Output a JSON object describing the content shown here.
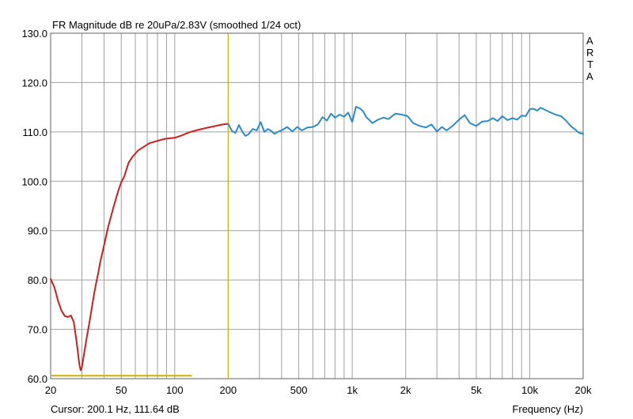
{
  "title": "FR Magnitude dB re 20uPa/2.83V (smoothed 1/24 oct)",
  "side_label": [
    "A",
    "R",
    "T",
    "A"
  ],
  "cursor_text": "Cursor: 200.1 Hz, 111.64 dB",
  "xlabel": "Frequency (Hz)",
  "colors": {
    "background": "#ffffff",
    "grid": "#a0a0a0",
    "frame": "#606060",
    "cursor_line": "#c8b400",
    "marker_line": "#c8b400",
    "series_low": "#cc2020",
    "series_high": "#2e8bc8"
  },
  "chart_data": {
    "type": "line",
    "title": "FR Magnitude dB re 20uPa/2.83V (smoothed 1/24 oct)",
    "xlabel": "Frequency (Hz)",
    "ylabel": "",
    "xscale": "log",
    "xlim": [
      20,
      20000
    ],
    "ylim": [
      60,
      130
    ],
    "grid": true,
    "x_tick_labels": [
      {
        "value": 20,
        "label": "20"
      },
      {
        "value": 50,
        "label": "50"
      },
      {
        "value": 100,
        "label": "100"
      },
      {
        "value": 200,
        "label": "200"
      },
      {
        "value": 500,
        "label": "500"
      },
      {
        "value": 1000,
        "label": "1k"
      },
      {
        "value": 2000,
        "label": "2k"
      },
      {
        "value": 5000,
        "label": "5k"
      },
      {
        "value": 10000,
        "label": "10k"
      },
      {
        "value": 20000,
        "label": "20k"
      }
    ],
    "y_tick_labels": [
      {
        "value": 130,
        "label": "130.0"
      },
      {
        "value": 120,
        "label": "120.0"
      },
      {
        "value": 110,
        "label": "110.0"
      },
      {
        "value": 100,
        "label": "100.0"
      },
      {
        "value": 90,
        "label": "90.0"
      },
      {
        "value": 80,
        "label": "80.0"
      },
      {
        "value": 70,
        "label": "70.0"
      },
      {
        "value": 60,
        "label": "60.0"
      }
    ],
    "cursor": {
      "x": 200.1,
      "y": 111.64
    },
    "marker_segment": {
      "x": [
        20,
        125
      ],
      "y": 60.6
    },
    "series": [
      {
        "color": "#cc2020",
        "points": [
          [
            20,
            80.2
          ],
          [
            21,
            78.5
          ],
          [
            22,
            75.8
          ],
          [
            23,
            73.8
          ],
          [
            24,
            72.7
          ],
          [
            25,
            72.5
          ],
          [
            26,
            72.8
          ],
          [
            27,
            71.5
          ],
          [
            28,
            67.5
          ],
          [
            29,
            63.0
          ],
          [
            29.5,
            61.7
          ],
          [
            30,
            62.3
          ],
          [
            31,
            65.5
          ],
          [
            32,
            68.5
          ],
          [
            33,
            71.2
          ],
          [
            34,
            74.0
          ],
          [
            35,
            76.8
          ],
          [
            36,
            79.2
          ],
          [
            37,
            81.2
          ],
          [
            38,
            83.5
          ],
          [
            40,
            87.0
          ],
          [
            42,
            90.5
          ],
          [
            45,
            94.5
          ],
          [
            48,
            98.0
          ],
          [
            50,
            99.8
          ],
          [
            52,
            101.0
          ],
          [
            55,
            103.8
          ],
          [
            58,
            105.0
          ],
          [
            62,
            106.2
          ],
          [
            67,
            107.0
          ],
          [
            72,
            107.7
          ],
          [
            80,
            108.2
          ],
          [
            88,
            108.6
          ],
          [
            100,
            108.8
          ],
          [
            110,
            109.3
          ],
          [
            120,
            109.9
          ],
          [
            135,
            110.4
          ],
          [
            150,
            110.8
          ],
          [
            170,
            111.2
          ],
          [
            185,
            111.5
          ],
          [
            200.1,
            111.64
          ]
        ]
      },
      {
        "color": "#2e8bc8",
        "points": [
          [
            200.1,
            111.64
          ],
          [
            210,
            110.2
          ],
          [
            220,
            109.8
          ],
          [
            230,
            111.4
          ],
          [
            240,
            110.1
          ],
          [
            250,
            109.2
          ],
          [
            260,
            109.5
          ],
          [
            275,
            110.6
          ],
          [
            290,
            110.3
          ],
          [
            305,
            112.0
          ],
          [
            320,
            110.0
          ],
          [
            335,
            110.6
          ],
          [
            350,
            110.2
          ],
          [
            365,
            109.6
          ],
          [
            385,
            110.1
          ],
          [
            400,
            110.3
          ],
          [
            430,
            111.0
          ],
          [
            460,
            110.1
          ],
          [
            490,
            111.0
          ],
          [
            520,
            110.3
          ],
          [
            560,
            110.9
          ],
          [
            600,
            111.0
          ],
          [
            640,
            111.5
          ],
          [
            680,
            113.0
          ],
          [
            720,
            112.3
          ],
          [
            760,
            113.7
          ],
          [
            800,
            112.9
          ],
          [
            850,
            113.5
          ],
          [
            900,
            113.1
          ],
          [
            950,
            113.9
          ],
          [
            1000,
            112.0
          ],
          [
            1050,
            115.1
          ],
          [
            1100,
            114.8
          ],
          [
            1150,
            114.2
          ],
          [
            1200,
            113.0
          ],
          [
            1300,
            111.8
          ],
          [
            1400,
            112.5
          ],
          [
            1500,
            112.9
          ],
          [
            1600,
            112.6
          ],
          [
            1750,
            113.7
          ],
          [
            1900,
            113.5
          ],
          [
            2050,
            113.2
          ],
          [
            2200,
            111.8
          ],
          [
            2400,
            111.2
          ],
          [
            2600,
            110.9
          ],
          [
            2800,
            111.5
          ],
          [
            3000,
            110.1
          ],
          [
            3200,
            111.0
          ],
          [
            3400,
            110.3
          ],
          [
            3700,
            111.3
          ],
          [
            4000,
            112.5
          ],
          [
            4300,
            113.4
          ],
          [
            4600,
            111.8
          ],
          [
            5000,
            111.2
          ],
          [
            5400,
            112.1
          ],
          [
            5800,
            112.2
          ],
          [
            6200,
            112.8
          ],
          [
            6600,
            112.2
          ],
          [
            7000,
            113.2
          ],
          [
            7500,
            112.4
          ],
          [
            8000,
            112.8
          ],
          [
            8500,
            112.5
          ],
          [
            9000,
            113.3
          ],
          [
            9500,
            113.2
          ],
          [
            10000,
            114.6
          ],
          [
            10500,
            114.7
          ],
          [
            11000,
            114.3
          ],
          [
            11500,
            114.9
          ],
          [
            12000,
            114.6
          ],
          [
            13000,
            114.0
          ],
          [
            14000,
            113.5
          ],
          [
            15000,
            113.2
          ],
          [
            16000,
            112.3
          ],
          [
            17000,
            111.2
          ],
          [
            18000,
            110.5
          ],
          [
            19000,
            109.8
          ],
          [
            20000,
            109.6
          ]
        ]
      }
    ]
  }
}
